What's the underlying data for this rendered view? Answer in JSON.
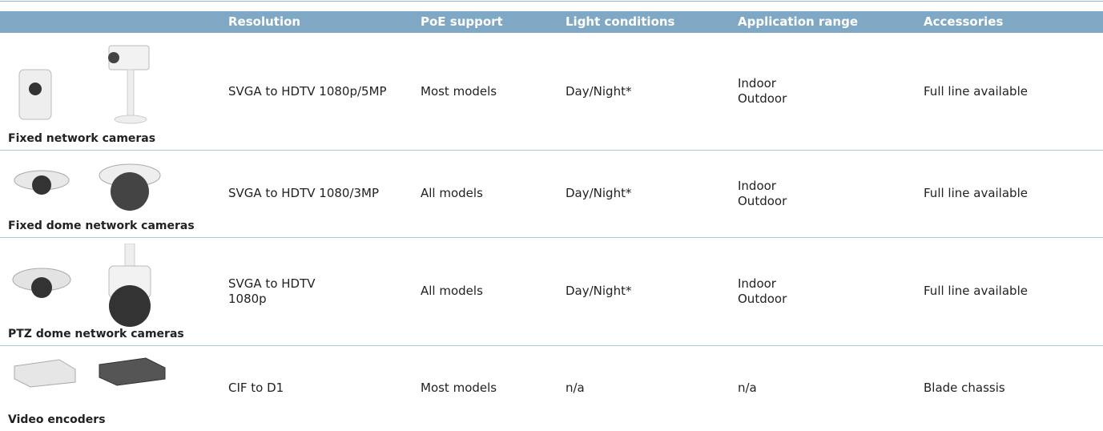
{
  "table": {
    "header": [
      "Resolution",
      "PoE support",
      "Light conditions",
      "Application range",
      "Accessories"
    ],
    "rows": [
      {
        "product": "Fixed network cameras",
        "cells": [
          [
            "SVGA to HDTV 1080p/5MP"
          ],
          [
            "Most models"
          ],
          [
            "Day/Night*"
          ],
          [
            "Indoor",
            "Outdoor"
          ],
          [
            "Full line available"
          ]
        ]
      },
      {
        "product": "Fixed dome network cameras",
        "cells": [
          [
            "SVGA to HDTV 1080/3MP"
          ],
          [
            "All models"
          ],
          [
            "Day/Night*"
          ],
          [
            "Indoor",
            "Outdoor"
          ],
          [
            "Full line available"
          ]
        ]
      },
      {
        "product": "PTZ dome network cameras",
        "cells": [
          [
            "SVGA to HDTV",
            "1080p"
          ],
          [
            "All models"
          ],
          [
            "Day/Night*"
          ],
          [
            "Indoor",
            "Outdoor"
          ],
          [
            "Full line available"
          ]
        ]
      },
      {
        "product": "Video encoders",
        "cells": [
          [
            "CIF to D1"
          ],
          [
            "Most models"
          ],
          [
            "n/a"
          ],
          [
            "n/a"
          ],
          [
            "Blade chassis"
          ]
        ]
      }
    ]
  }
}
